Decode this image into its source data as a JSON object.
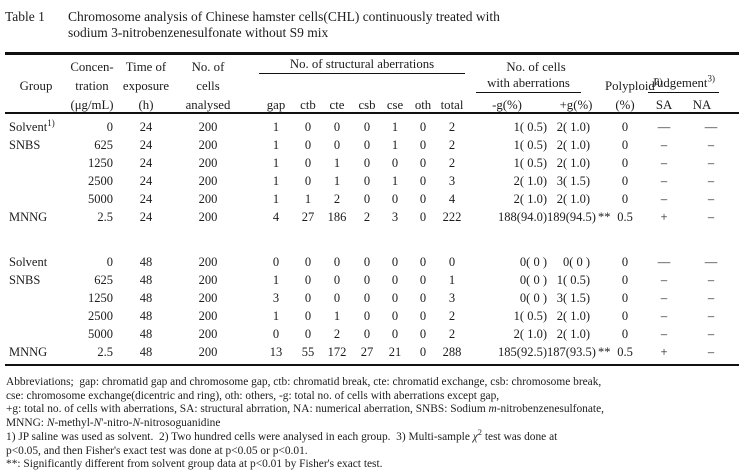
{
  "colors": {
    "background": "#ffffff",
    "text": "#1c1c1c",
    "rules": "#111111"
  },
  "title": {
    "label": "Table 1",
    "line1": "Chromosome analysis of Chinese hamster cells(CHL) continuously treated with",
    "line2": "sodium 3-nitrobenzenesulfonate without S9 mix"
  },
  "header": {
    "group": "Group",
    "conc": [
      "Concen-",
      "tration",
      "(μg/mL)"
    ],
    "time": [
      "Time of",
      "exposure",
      "(h)"
    ],
    "cells": [
      "No. of",
      "cells",
      "analysed"
    ],
    "struct": {
      "label": "No. of structural aberrations",
      "cols": [
        "gap",
        "ctb",
        "cte",
        "csb",
        "cse",
        "oth",
        "total"
      ]
    },
    "with_ab": {
      "line1": "No. of cells",
      "line2": "with aberrations",
      "cols": [
        "-g(%)",
        "+g(%)"
      ]
    },
    "poly": {
      "label": "Polyploid",
      "sup": "2)",
      "unit": "(%)"
    },
    "judge": {
      "label": "Judgement",
      "sup": "3)",
      "cols": [
        "SA",
        "NA"
      ]
    }
  },
  "table": {
    "rows": [
      {
        "group": "Solvent",
        "gsup": "1)",
        "conc": "0",
        "time": "24",
        "cells": "200",
        "gap": "1",
        "ctb": "0",
        "cte": "0",
        "csb": "0",
        "cse": "1",
        "oth": "0",
        "total": "2",
        "mg": "1( 0.5)",
        "pg": "2( 1.0)",
        "star": "",
        "poly": "0",
        "sa": "—",
        "na": "—"
      },
      {
        "group": "SNBS",
        "conc": "625",
        "time": "24",
        "cells": "200",
        "gap": "1",
        "ctb": "0",
        "cte": "0",
        "csb": "0",
        "cse": "1",
        "oth": "0",
        "total": "2",
        "mg": "1( 0.5)",
        "pg": "2( 1.0)",
        "star": "",
        "poly": "0",
        "sa": "–",
        "na": "–"
      },
      {
        "group": "",
        "conc": "1250",
        "time": "24",
        "cells": "200",
        "gap": "1",
        "ctb": "0",
        "cte": "1",
        "csb": "0",
        "cse": "0",
        "oth": "0",
        "total": "2",
        "mg": "1( 0.5)",
        "pg": "2( 1.0)",
        "star": "",
        "poly": "0",
        "sa": "–",
        "na": "–"
      },
      {
        "group": "",
        "conc": "2500",
        "time": "24",
        "cells": "200",
        "gap": "1",
        "ctb": "0",
        "cte": "1",
        "csb": "0",
        "cse": "1",
        "oth": "0",
        "total": "3",
        "mg": "2( 1.0)",
        "pg": "3( 1.5)",
        "star": "",
        "poly": "0",
        "sa": "–",
        "na": "–"
      },
      {
        "group": "",
        "conc": "5000",
        "time": "24",
        "cells": "200",
        "gap": "1",
        "ctb": "1",
        "cte": "2",
        "csb": "0",
        "cse": "0",
        "oth": "0",
        "total": "4",
        "mg": "2( 1.0)",
        "pg": "2( 1.0)",
        "star": "",
        "poly": "0",
        "sa": "–",
        "na": "–"
      },
      {
        "group": "MNNG",
        "conc": "2.5",
        "time": "24",
        "cells": "200",
        "gap": "4",
        "ctb": "27",
        "cte": "186",
        "csb": "2",
        "cse": "3",
        "oth": "0",
        "total": "222",
        "mg": "188(94.0)",
        "pg": "189(94.5)",
        "star": "**",
        "poly": "0.5",
        "sa": "+",
        "na": "–"
      },
      {
        "spacer": true
      },
      {
        "group": "Solvent",
        "conc": "0",
        "time": "48",
        "cells": "200",
        "gap": "0",
        "ctb": "0",
        "cte": "0",
        "csb": "0",
        "cse": "0",
        "oth": "0",
        "total": "0",
        "mg": "0( 0 )",
        "pg": "0( 0 )",
        "star": "",
        "poly": "0",
        "sa": "—",
        "na": "—"
      },
      {
        "group": "SNBS",
        "conc": "625",
        "time": "48",
        "cells": "200",
        "gap": "1",
        "ctb": "0",
        "cte": "0",
        "csb": "0",
        "cse": "0",
        "oth": "0",
        "total": "1",
        "mg": "0( 0 )",
        "pg": "1( 0.5)",
        "star": "",
        "poly": "0",
        "sa": "–",
        "na": "–"
      },
      {
        "group": "",
        "conc": "1250",
        "time": "48",
        "cells": "200",
        "gap": "3",
        "ctb": "0",
        "cte": "0",
        "csb": "0",
        "cse": "0",
        "oth": "0",
        "total": "3",
        "mg": "0( 0 )",
        "pg": "3( 1.5)",
        "star": "",
        "poly": "0",
        "sa": "–",
        "na": "–"
      },
      {
        "group": "",
        "conc": "2500",
        "time": "48",
        "cells": "200",
        "gap": "1",
        "ctb": "0",
        "cte": "1",
        "csb": "0",
        "cse": "0",
        "oth": "0",
        "total": "2",
        "mg": "1( 0.5)",
        "pg": "2( 1.0)",
        "star": "",
        "poly": "0",
        "sa": "–",
        "na": "–"
      },
      {
        "group": "",
        "conc": "5000",
        "time": "48",
        "cells": "200",
        "gap": "0",
        "ctb": "0",
        "cte": "2",
        "csb": "0",
        "cse": "0",
        "oth": "0",
        "total": "2",
        "mg": "2( 1.0)",
        "pg": "2( 1.0)",
        "star": "",
        "poly": "0",
        "sa": "–",
        "na": "–"
      },
      {
        "group": "MNNG",
        "conc": "2.5",
        "time": "48",
        "cells": "200",
        "gap": "13",
        "ctb": "55",
        "cte": "172",
        "csb": "27",
        "cse": "21",
        "oth": "0",
        "total": "288",
        "mg": "185(92.5)",
        "pg": "187(93.5)",
        "star": "**",
        "poly": "0.5",
        "sa": "+",
        "na": "–"
      }
    ]
  },
  "footnotes": {
    "lines": [
      [
        {
          "t": "Abbreviations;  gap: chromatid gap and chromosome gap, ctb: chromatid break, cte: chromatid exchange, csb: chromosome break,"
        }
      ],
      [
        {
          "t": "cse: chromosome exchange(dicentric and ring), oth: others, -g: total no. of cells with aberrations except gap,"
        }
      ],
      [
        {
          "t": "+g: total no. of cells with aberrations, SA: structural abrration, NA: numerical aberration, SNBS: Sodium "
        },
        {
          "t": "m",
          "i": 1
        },
        {
          "t": "-nitrobenzenesulfonate,"
        }
      ],
      [
        {
          "t": "MNNG: "
        },
        {
          "t": "N",
          "i": 1
        },
        {
          "t": "-methyl-"
        },
        {
          "t": "N",
          "i": 1
        },
        {
          "t": "'-nitro-"
        },
        {
          "t": "N",
          "i": 1
        },
        {
          "t": "-nitrosoguanidine"
        }
      ],
      [
        {
          "t": "1) JP saline was used as solvent.  2) Two hundred cells were analysed in each group.  3) Multi-sample "
        },
        {
          "t": "χ",
          "i": 1
        },
        {
          "t": "2",
          "sup": 1
        },
        {
          "t": " test was done at"
        }
      ],
      [
        {
          "t": "p<0.05, and then Fisher's exact test was done at p<0.05 or p<0.01."
        }
      ],
      [
        {
          "t": "**: Significantly different from solvent group data at p<0.01 by Fisher's exact test."
        }
      ]
    ]
  }
}
